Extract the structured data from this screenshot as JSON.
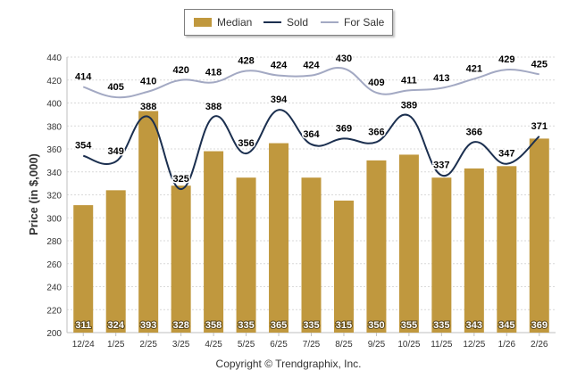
{
  "chart_data": {
    "type": "bar",
    "categories": [
      "12/24",
      "1/25",
      "2/25",
      "3/25",
      "4/25",
      "5/25",
      "6/25",
      "7/25",
      "8/25",
      "9/25",
      "10/25",
      "11/25",
      "12/25",
      "1/26",
      "2/26"
    ],
    "series": [
      {
        "name": "Median",
        "type": "bar",
        "color": "#c0983e",
        "values": [
          311,
          324,
          393,
          328,
          358,
          335,
          365,
          335,
          315,
          350,
          355,
          335,
          343,
          345,
          369
        ]
      },
      {
        "name": "Sold",
        "type": "line",
        "color": "#1b2f4f",
        "values": [
          354,
          349,
          388,
          325,
          388,
          356,
          394,
          364,
          369,
          366,
          389,
          337,
          366,
          347,
          371
        ]
      },
      {
        "name": "For Sale",
        "type": "line",
        "color": "#a3a9c3",
        "values": [
          414,
          405,
          410,
          420,
          418,
          428,
          424,
          424,
          430,
          409,
          411,
          413,
          421,
          429,
          425
        ]
      }
    ],
    "ylabel": "Price (in $,000)",
    "xlabel": "",
    "ylim": [
      200,
      440
    ],
    "yticks": [
      200,
      220,
      240,
      260,
      280,
      300,
      320,
      340,
      360,
      380,
      400,
      420,
      440
    ],
    "grid": true,
    "legend_position": "top-center"
  },
  "legend": {
    "median_label": "Median",
    "sold_label": "Sold",
    "forsale_label": "For Sale"
  },
  "footer": {
    "copyright": "Copyright © Trendgraphix, Inc."
  }
}
